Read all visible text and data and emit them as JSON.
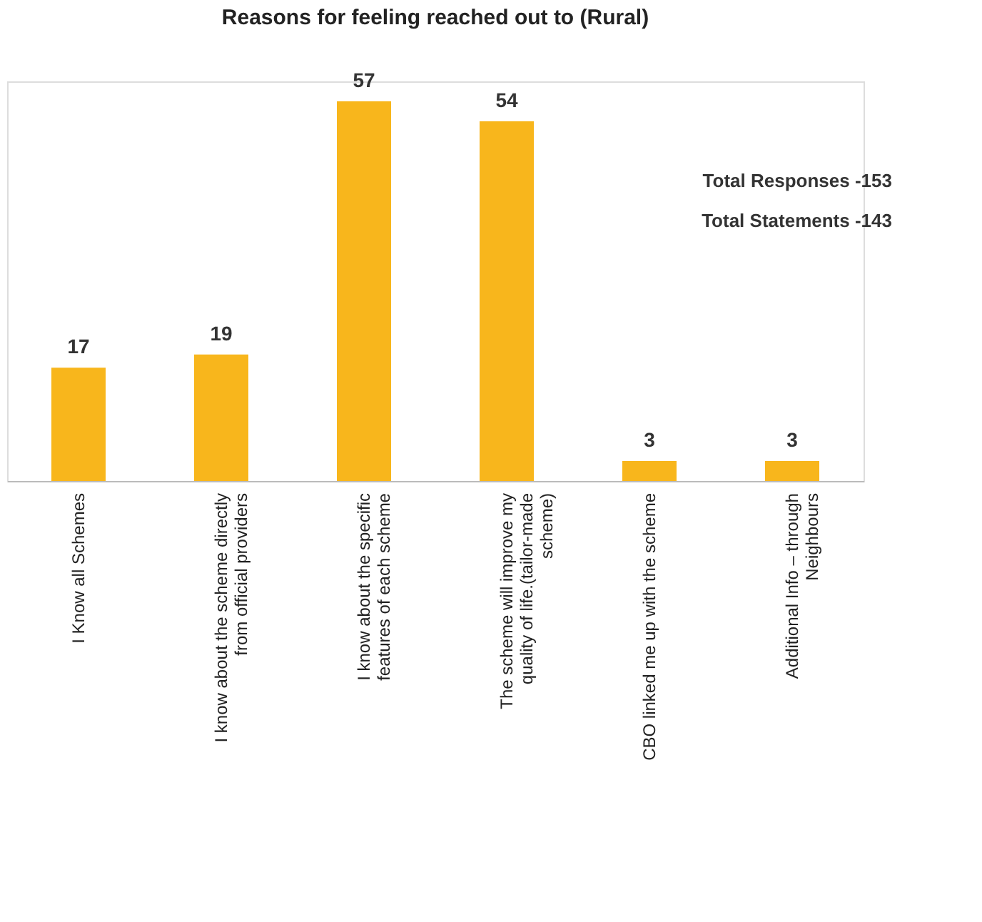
{
  "chart_data": {
    "type": "bar",
    "title": "Reasons for feeling reached out to (Rural)",
    "categories": [
      "I Know all Schemes",
      "I know about the scheme directly from official providers",
      "I know about the specific features of each scheme",
      "The scheme will improve my quality of life.(tailor-made scheme)",
      "CBO linked me up with the scheme",
      "Additional Info – through Neighbours"
    ],
    "values": [
      17,
      19,
      57,
      54,
      3,
      3
    ],
    "color": "#f8b61c",
    "data_labels": true,
    "grid": false,
    "annotations": [
      "Total Responses -153",
      "Total Statements -143"
    ]
  }
}
